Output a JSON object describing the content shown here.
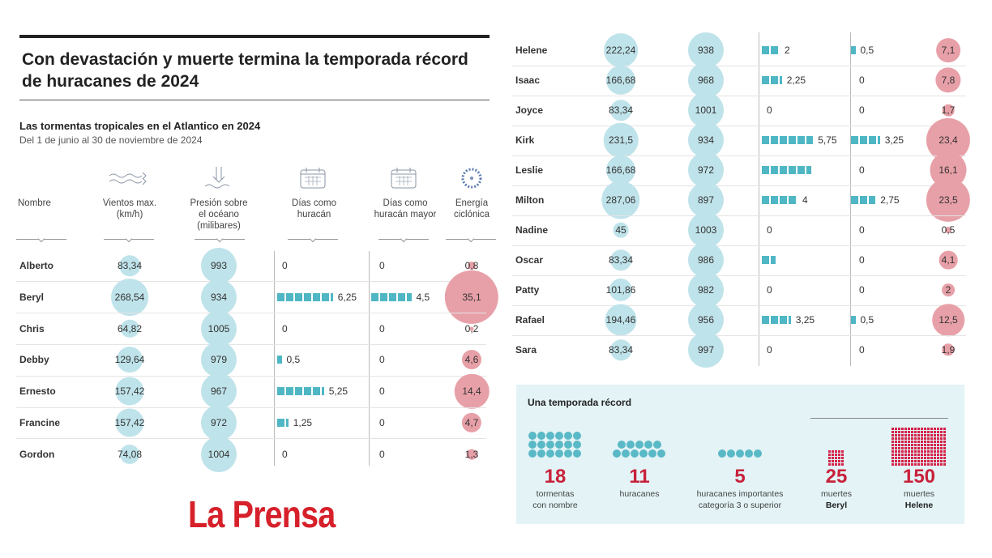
{
  "title": "Con devastación y muerte termina la temporada récord de huracanes de 2024",
  "subtitle": "Las tormentas tropicales en el Atlantico en 2024",
  "date_range": "Del 1 de junio al 30 de noviembre de 2024",
  "columns": [
    {
      "label": "Nombre",
      "icon": ""
    },
    {
      "label": "Vientos max. (km/h)",
      "icon": "wind-icon"
    },
    {
      "label": "Presión sobre el océano (milibares)",
      "icon": "pressure-icon"
    },
    {
      "label": "Días como huracán",
      "icon": "calendar-icon"
    },
    {
      "label": "Días como huracán mayor",
      "icon": "calendar-icon"
    },
    {
      "label": "Energía ciclónica",
      "icon": "hurricane-icon"
    }
  ],
  "colors": {
    "wind_pressure": "#bfe3ea",
    "energy": "#e8a0a8",
    "bars": "#4fb7c4",
    "accent": "#c8213a",
    "logo": "#d6202a",
    "summary_bg": "#e3f3f6"
  },
  "chart_data": {
    "type": "table",
    "columns": [
      "Nombre",
      "Vientos max. (km/h)",
      "Presión sobre el océano (milibares)",
      "Días como huracán",
      "Días como huracán mayor",
      "Energía ciclónica"
    ],
    "rows": [
      {
        "name": "Alberto",
        "wind": "83,34",
        "pressure": "993",
        "hur_days": "0",
        "major_days": "0",
        "energy": "0,8"
      },
      {
        "name": "Beryl",
        "wind": "268,54",
        "pressure": "934",
        "hur_days": "6,25",
        "major_days": "4,5",
        "energy": "35,1"
      },
      {
        "name": "Chris",
        "wind": "64,82",
        "pressure": "1005",
        "hur_days": "0",
        "major_days": "0",
        "energy": "0,2"
      },
      {
        "name": "Debby",
        "wind": "129,64",
        "pressure": "979",
        "hur_days": "0,5",
        "major_days": "0",
        "energy": "4,6"
      },
      {
        "name": "Ernesto",
        "wind": "157,42",
        "pressure": "967",
        "hur_days": "5,25",
        "major_days": "0",
        "energy": "14,4"
      },
      {
        "name": "Francine",
        "wind": "157,42",
        "pressure": "972",
        "hur_days": "1,25",
        "major_days": "0",
        "energy": "4,7"
      },
      {
        "name": "Gordon",
        "wind": "74,08",
        "pressure": "1004",
        "hur_days": "0",
        "major_days": "0",
        "energy": "1,3"
      },
      {
        "name": "Helene",
        "wind": "222,24",
        "pressure": "938",
        "hur_days": "2",
        "major_days": "0,5",
        "energy": "7,1"
      },
      {
        "name": "Isaac",
        "wind": "166,68",
        "pressure": "968",
        "hur_days": "2,25",
        "major_days": "0",
        "energy": "7,8"
      },
      {
        "name": "Joyce",
        "wind": "83,34",
        "pressure": "1001",
        "hur_days": "0",
        "major_days": "0",
        "energy": "1,7"
      },
      {
        "name": "Kirk",
        "wind": "231,5",
        "pressure": "934",
        "hur_days": "5,75",
        "major_days": "3,25",
        "energy": "23,4"
      },
      {
        "name": "Leslie",
        "wind": "166,68",
        "pressure": "972",
        "hur_days": "",
        "hur_days_bar": 5.5,
        "major_days": "0",
        "energy": "16,1"
      },
      {
        "name": "Milton",
        "wind": "287,06",
        "pressure": "897",
        "hur_days": "4",
        "major_days": "2,75",
        "energy": "23,5"
      },
      {
        "name": "Nadine",
        "wind": "45",
        "pressure": "1003",
        "hur_days": "0",
        "major_days": "0",
        "energy": "0,5"
      },
      {
        "name": "Oscar",
        "wind": "83,34",
        "pressure": "986",
        "hur_days": "",
        "hur_days_bar": 1.5,
        "major_days": "0",
        "energy": "4,1"
      },
      {
        "name": "Patty",
        "wind": "101,86",
        "pressure": "982",
        "hur_days": "0",
        "major_days": "0",
        "energy": "2"
      },
      {
        "name": "Rafael",
        "wind": "194,46",
        "pressure": "956",
        "hur_days": "3,25",
        "major_days": "0,5",
        "energy": "12,5"
      },
      {
        "name": "Sara",
        "wind": "83,34",
        "pressure": "997",
        "hur_days": "0",
        "major_days": "0",
        "energy": "1,9"
      }
    ]
  },
  "summary": {
    "title": "Una temporada récord",
    "items": [
      {
        "number": "18",
        "label": "tormentas",
        "label2": "con nombre",
        "icon": "circle-dots"
      },
      {
        "number": "11",
        "label": "huracanes",
        "label2": "",
        "icon": "circle-dots"
      },
      {
        "number": "5",
        "label": "huracanes importantes",
        "label2": "categoría 3 o superior",
        "icon": "circle-dots"
      },
      {
        "number": "25",
        "label": "muertes",
        "label2": "Beryl",
        "icon": "square-grid"
      },
      {
        "number": "150",
        "label": "muertes",
        "label2": "Helene",
        "icon": "square-grid"
      }
    ]
  },
  "logo": "La Prensa"
}
